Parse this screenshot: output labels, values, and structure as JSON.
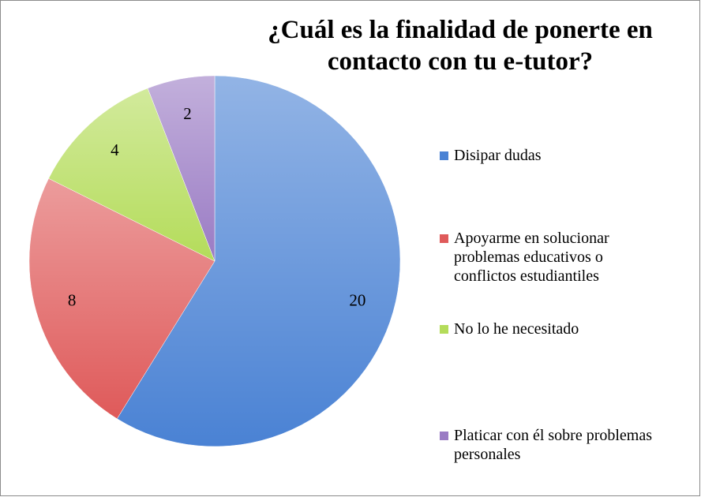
{
  "chart_data": {
    "type": "pie",
    "title": "¿Cuál es la finalidad de ponerte en contacto con tu e-tutor?",
    "categories": [
      "Disipar dudas",
      "Apoyarme en solucionar problemas educativos o conflictos estudiantiles",
      "No lo he necesitado",
      "Platicar con él sobre problemas personales"
    ],
    "values": [
      20,
      8,
      4,
      2
    ],
    "colors": [
      "#4a82d4",
      "#df5a5a",
      "#b4dc5a",
      "#9a7bc4"
    ],
    "legend": "right"
  }
}
